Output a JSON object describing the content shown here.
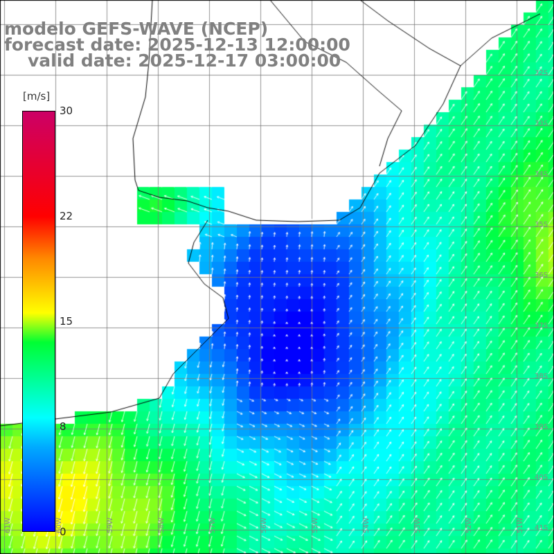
{
  "title": {
    "line1": "modelo GEFS-WAVE (NCEP)",
    "line2": "forecast date: 2025-12-13 12:00:00",
    "line3": "valid date: 2025-12-17 03:00:00"
  },
  "colorbar": {
    "unit": "[m/s]",
    "ticks": [
      "0",
      "8",
      "15",
      "22",
      "30"
    ],
    "range": [
      0,
      30
    ],
    "colors": [
      "#0000ff",
      "#00aaff",
      "#00ffff",
      "#00ff33",
      "#ffff00",
      "#ff8800",
      "#ff0000",
      "#cc0066"
    ]
  },
  "map": {
    "variable": "wind speed and direction",
    "lat_labels": [
      "32S",
      "33S",
      "34S",
      "35S",
      "36S",
      "37S",
      "38S",
      "39S",
      "40S",
      "41S"
    ],
    "lon_labels": [
      "61W",
      "60W",
      "59W",
      "58W",
      "57W",
      "56W",
      "55W",
      "54W",
      "53W",
      "52W",
      "51W"
    ],
    "grid_lines": true
  }
}
